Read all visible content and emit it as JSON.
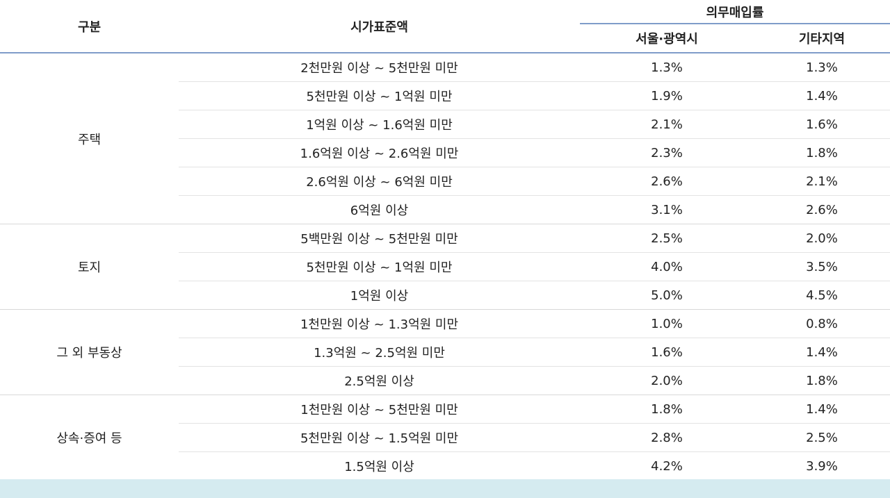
{
  "header": {
    "category": "구분",
    "standard_value": "시가표준액",
    "purchase_rate": "의무매입률",
    "seoul_metro": "서울·광역시",
    "other_region": "기타지역"
  },
  "groups": [
    {
      "name": "주택",
      "rows": [
        {
          "range": "2천만원 이상 ~ 5천만원 미만",
          "seoul": "1.3%",
          "other": "1.3%"
        },
        {
          "range": "5천만원 이상 ~ 1억원 미만",
          "seoul": "1.9%",
          "other": "1.4%"
        },
        {
          "range": "1억원 이상 ~ 1.6억원 미만",
          "seoul": "2.1%",
          "other": "1.6%"
        },
        {
          "range": "1.6억원 이상 ~ 2.6억원 미만",
          "seoul": "2.3%",
          "other": "1.8%"
        },
        {
          "range": "2.6억원 이상 ~ 6억원 미만",
          "seoul": "2.6%",
          "other": "2.1%"
        },
        {
          "range": "6억원 이상",
          "seoul": "3.1%",
          "other": "2.6%"
        }
      ]
    },
    {
      "name": "토지",
      "rows": [
        {
          "range": "5백만원 이상 ~ 5천만원 미만",
          "seoul": "2.5%",
          "other": "2.0%"
        },
        {
          "range": "5천만원 이상 ~ 1억원 미만",
          "seoul": "4.0%",
          "other": "3.5%"
        },
        {
          "range": "1억원 이상",
          "seoul": "5.0%",
          "other": "4.5%"
        }
      ]
    },
    {
      "name": "그 외 부동상",
      "rows": [
        {
          "range": "1천만원 이상 ~ 1.3억원 미만",
          "seoul": "1.0%",
          "other": "0.8%"
        },
        {
          "range": "1.3억원 ~ 2.5억원 미만",
          "seoul": "1.6%",
          "other": "1.4%"
        },
        {
          "range": "2.5억원 이상",
          "seoul": "2.0%",
          "other": "1.8%"
        }
      ]
    },
    {
      "name": "상속·증여 등",
      "rows": [
        {
          "range": "1천만원 이상 ~ 5천만원 미만",
          "seoul": "1.8%",
          "other": "1.4%"
        },
        {
          "range": "5천만원 이상 ~ 1.5억원 미만",
          "seoul": "2.8%",
          "other": "2.5%"
        },
        {
          "range": "1.5억원 이상",
          "seoul": "4.2%",
          "other": "3.9%"
        }
      ]
    }
  ],
  "colors": {
    "header_rule": "#7f9cc9",
    "footer_band": "#d5ebf0"
  }
}
